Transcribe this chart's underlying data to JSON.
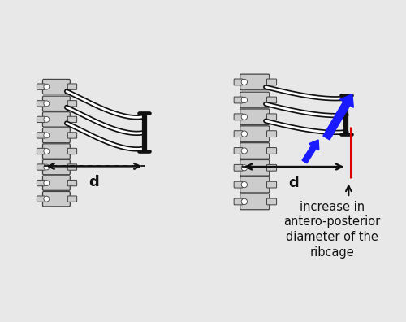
{
  "bg_color": "#e8e8e8",
  "panel_bg": "#ffffff",
  "spine_fill": "#cccccc",
  "spine_edge": "#444444",
  "rib_black": "#111111",
  "rib_white": "#ffffff",
  "bar_color": "#111111",
  "arrow_blue": "#1a1aff",
  "arrow_red": "#dd0000",
  "dashed_color": "#111111",
  "text_color": "#111111",
  "annotation_text": "increase in\nantero-posterior\ndiameter of the\nribcage",
  "d_label": "d",
  "font_size_d": 13,
  "font_size_annot": 10.5
}
